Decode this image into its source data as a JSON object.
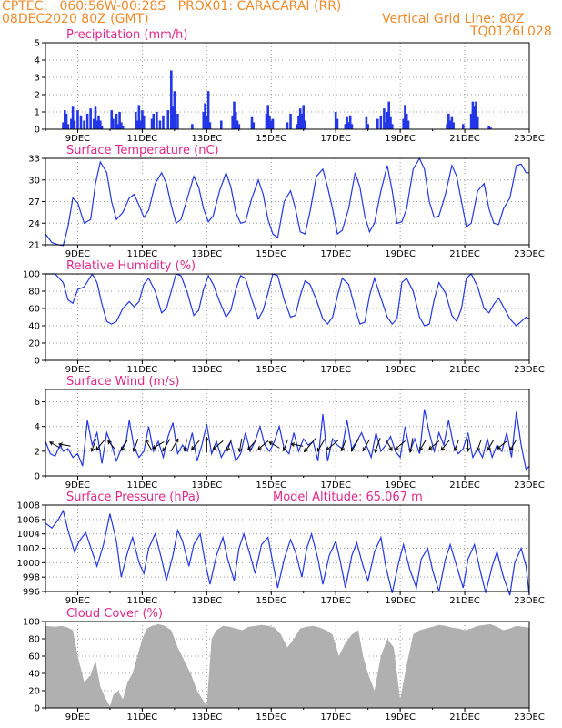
{
  "header": {
    "line1": "CPTEC:   060:56W-00:28S   PROX01: CARACARAI (RR)",
    "line2_left": "08DEC2020 80Z (GMT)",
    "line2_right": "Vertical Grid Line: 80Z",
    "line3_right": "TQ0126L028"
  },
  "colors": {
    "line": "#2336e8",
    "bar": "#2336e8",
    "cloud": "#b0b0b0",
    "title": "#e0288a",
    "header": "#f08a2a",
    "arrow": "#000000"
  },
  "x_labels": [
    "9DEC",
    "11DEC",
    "13DEC",
    "15DEC",
    "17DEC",
    "19DEC",
    "21DEC",
    "23DEC"
  ],
  "chart_data": [
    {
      "type": "bar",
      "title": "Precipitation (mm/h)",
      "ylim": [
        0,
        5
      ],
      "yticks": [
        "0",
        "1",
        "2",
        "3",
        "4",
        "5"
      ],
      "x": [
        8.55,
        8.6,
        8.65,
        8.7,
        8.8,
        8.85,
        8.9,
        9.0,
        9.1,
        9.2,
        9.3,
        9.4,
        9.5,
        9.55,
        9.6,
        9.65,
        9.7,
        9.75,
        10.05,
        10.1,
        10.2,
        10.25,
        10.3,
        10.35,
        10.4,
        10.8,
        10.85,
        10.9,
        10.95,
        11.0,
        11.05,
        11.3,
        11.35,
        11.45,
        11.55,
        11.65,
        11.8,
        11.9,
        11.95,
        12.0,
        12.1,
        12.55,
        12.9,
        12.95,
        13.0,
        13.05,
        13.1,
        13.45,
        13.8,
        13.85,
        13.9,
        13.95,
        14.0,
        14.4,
        14.45,
        14.85,
        14.9,
        14.95,
        15.0,
        15.05,
        15.5,
        15.6,
        15.8,
        15.85,
        15.9,
        15.95,
        16.0,
        16.05,
        17.0,
        17.05,
        17.3,
        17.35,
        17.4,
        17.45,
        17.5,
        17.95,
        18.0,
        18.3,
        18.4,
        18.5,
        18.55,
        18.6,
        18.65,
        18.7,
        18.75,
        19.1,
        19.15,
        19.2,
        19.25,
        20.45,
        20.5,
        20.55,
        20.6,
        20.65,
        20.95,
        21.2,
        21.25,
        21.3,
        21.35,
        21.4,
        21.75,
        21.8
      ],
      "values": [
        0.4,
        1.1,
        0.9,
        0.3,
        0.6,
        1.3,
        0.5,
        1.1,
        0.8,
        0.5,
        0.9,
        1.2,
        0.6,
        1.3,
        0.5,
        0.8,
        0.5,
        0.2,
        1.1,
        0.6,
        0.9,
        0.3,
        1.0,
        0.4,
        0.2,
        1.0,
        0.5,
        1.4,
        0.5,
        1.1,
        0.8,
        0.6,
        0.9,
        1.0,
        0.5,
        0.8,
        1.1,
        3.4,
        1.3,
        2.2,
        0.9,
        0.3,
        1.0,
        1.5,
        0.8,
        2.2,
        0.4,
        0.5,
        0.8,
        1.6,
        1.0,
        0.5,
        0.3,
        0.7,
        0.4,
        0.9,
        1.4,
        0.8,
        0.5,
        0.6,
        0.4,
        0.9,
        0.3,
        0.8,
        1.2,
        0.9,
        1.4,
        0.5,
        1.0,
        0.6,
        0.3,
        0.7,
        0.4,
        0.8,
        0.3,
        0.7,
        0.3,
        0.6,
        0.8,
        1.2,
        0.4,
        1.0,
        1.6,
        0.7,
        0.3,
        0.6,
        1.4,
        0.9,
        0.5,
        0.3,
        0.9,
        0.5,
        0.7,
        0.4,
        0.3,
        0.9,
        1.6,
        1.3,
        1.6,
        0.7,
        0.2,
        0.1
      ]
    },
    {
      "type": "line",
      "title": "Surface Temperature (nC)",
      "ylim": [
        21,
        33
      ],
      "yticks": [
        "21",
        "24",
        "27",
        "30",
        "33"
      ],
      "x": [
        8.0,
        8.2,
        8.4,
        8.55,
        8.7,
        8.85,
        9.0,
        9.2,
        9.4,
        9.55,
        9.7,
        9.9,
        10.05,
        10.2,
        10.4,
        10.6,
        10.75,
        10.9,
        11.05,
        11.2,
        11.4,
        11.6,
        11.75,
        11.9,
        12.05,
        12.2,
        12.4,
        12.6,
        12.75,
        12.9,
        13.05,
        13.2,
        13.4,
        13.6,
        13.75,
        13.9,
        14.05,
        14.2,
        14.4,
        14.6,
        14.75,
        14.9,
        15.05,
        15.2,
        15.4,
        15.6,
        15.75,
        15.9,
        16.05,
        16.2,
        16.4,
        16.6,
        16.75,
        16.9,
        17.05,
        17.2,
        17.4,
        17.6,
        17.75,
        17.9,
        18.05,
        18.2,
        18.4,
        18.6,
        18.75,
        18.9,
        19.05,
        19.2,
        19.4,
        19.6,
        19.75,
        19.9,
        20.05,
        20.2,
        20.4,
        20.6,
        20.75,
        20.9,
        21.05,
        21.2,
        21.4,
        21.6,
        21.75,
        21.9,
        22.05,
        22.2,
        22.4,
        22.6,
        22.75,
        22.9,
        23.0
      ],
      "values": [
        22.5,
        21.3,
        21.0,
        20.9,
        23.5,
        27.5,
        26.8,
        24.0,
        24.5,
        29.5,
        32.5,
        31.0,
        27.0,
        24.5,
        25.5,
        27.5,
        28.0,
        26.5,
        24.8,
        25.8,
        29.5,
        31.0,
        29.5,
        26.5,
        24.0,
        24.5,
        27.5,
        30.5,
        29.0,
        26.0,
        24.2,
        25.0,
        28.5,
        31.0,
        29.0,
        25.5,
        24.0,
        24.2,
        27.5,
        30.0,
        28.0,
        24.5,
        22.5,
        22.0,
        27.0,
        28.5,
        26.0,
        22.8,
        22.5,
        25.5,
        30.5,
        31.5,
        29.0,
        26.0,
        22.5,
        23.0,
        26.0,
        31.0,
        29.0,
        25.0,
        22.8,
        24.0,
        28.5,
        32.0,
        28.5,
        24.0,
        24.2,
        26.0,
        31.5,
        33.0,
        31.5,
        27.0,
        24.8,
        25.0,
        28.0,
        32.0,
        30.5,
        27.0,
        23.5,
        24.0,
        28.5,
        29.5,
        26.0,
        24.0,
        23.8,
        26.0,
        27.5,
        32.0,
        32.2,
        31.0,
        31.0
      ]
    },
    {
      "type": "line",
      "title": "Relative Humidity (%)",
      "ylim": [
        0,
        100
      ],
      "yticks": [
        "0",
        "20",
        "40",
        "60",
        "80",
        "100"
      ],
      "x": [
        8.0,
        8.3,
        8.55,
        8.7,
        8.85,
        9.0,
        9.2,
        9.45,
        9.6,
        9.75,
        9.9,
        10.05,
        10.2,
        10.4,
        10.6,
        10.75,
        10.9,
        11.05,
        11.2,
        11.4,
        11.6,
        11.75,
        11.9,
        12.05,
        12.2,
        12.4,
        12.6,
        12.75,
        12.9,
        13.05,
        13.2,
        13.4,
        13.6,
        13.75,
        13.9,
        14.05,
        14.2,
        14.4,
        14.6,
        14.75,
        14.9,
        15.05,
        15.2,
        15.4,
        15.6,
        15.75,
        15.9,
        16.05,
        16.2,
        16.4,
        16.6,
        16.75,
        16.9,
        17.05,
        17.2,
        17.4,
        17.6,
        17.75,
        17.9,
        18.05,
        18.2,
        18.4,
        18.6,
        18.75,
        18.9,
        19.05,
        19.2,
        19.4,
        19.6,
        19.75,
        19.9,
        20.05,
        20.2,
        20.4,
        20.6,
        20.75,
        20.9,
        21.05,
        21.2,
        21.4,
        21.6,
        21.75,
        21.9,
        22.05,
        22.2,
        22.4,
        22.6,
        22.75,
        22.9,
        23.0
      ],
      "values": [
        100,
        100,
        90,
        70,
        66,
        82,
        85,
        100,
        90,
        65,
        45,
        42,
        45,
        60,
        68,
        62,
        68,
        88,
        95,
        80,
        55,
        60,
        80,
        100,
        98,
        78,
        52,
        58,
        82,
        98,
        88,
        68,
        50,
        58,
        82,
        98,
        95,
        70,
        48,
        58,
        78,
        100,
        98,
        70,
        50,
        52,
        75,
        92,
        88,
        70,
        48,
        42,
        50,
        74,
        95,
        88,
        60,
        42,
        44,
        75,
        95,
        72,
        50,
        42,
        48,
        90,
        95,
        80,
        50,
        40,
        42,
        70,
        90,
        78,
        52,
        45,
        60,
        95,
        100,
        85,
        60,
        55,
        65,
        72,
        62,
        48,
        40,
        45,
        50,
        48
      ]
    },
    {
      "type": "line",
      "title": "Surface Wind (m/s)",
      "ylim": [
        0,
        7
      ],
      "yticks": [
        "0",
        "2",
        "4",
        "6"
      ],
      "x": [
        8.0,
        8.15,
        8.3,
        8.45,
        8.55,
        8.7,
        8.85,
        9.0,
        9.15,
        9.3,
        9.45,
        9.6,
        9.75,
        9.9,
        10.05,
        10.2,
        10.35,
        10.5,
        10.6,
        10.75,
        10.9,
        11.05,
        11.2,
        11.35,
        11.5,
        11.65,
        11.8,
        11.95,
        12.1,
        12.25,
        12.4,
        12.55,
        12.7,
        12.85,
        13.0,
        13.15,
        13.3,
        13.45,
        13.6,
        13.75,
        13.9,
        14.05,
        14.2,
        14.35,
        14.5,
        14.65,
        14.8,
        14.95,
        15.1,
        15.25,
        15.4,
        15.55,
        15.7,
        15.85,
        16.0,
        16.15,
        16.3,
        16.45,
        16.6,
        16.75,
        16.9,
        17.05,
        17.2,
        17.35,
        17.5,
        17.65,
        17.8,
        17.95,
        18.1,
        18.25,
        18.4,
        18.55,
        18.7,
        18.85,
        19.0,
        19.15,
        19.3,
        19.45,
        19.6,
        19.75,
        19.9,
        20.05,
        20.2,
        20.35,
        20.5,
        20.65,
        20.8,
        20.95,
        21.1,
        21.25,
        21.4,
        21.55,
        21.7,
        21.85,
        22.0,
        22.15,
        22.3,
        22.45,
        22.6,
        22.75,
        22.9,
        23.0
      ],
      "values": [
        2.8,
        1.8,
        1.6,
        2.5,
        2.0,
        2.2,
        1.5,
        1.8,
        0.8,
        4.5,
        2.5,
        3.5,
        1.0,
        3.5,
        2.5,
        1.2,
        2.2,
        2.8,
        4.5,
        2.3,
        1.5,
        2.0,
        4.0,
        2.0,
        2.8,
        1.5,
        3.2,
        4.3,
        1.8,
        2.5,
        2.0,
        3.5,
        1.2,
        2.5,
        4.2,
        1.8,
        2.8,
        1.5,
        2.2,
        2.8,
        1.2,
        1.8,
        3.5,
        2.0,
        2.8,
        4.0,
        2.5,
        2.0,
        2.8,
        4.0,
        2.2,
        1.8,
        3.5,
        2.0,
        3.0,
        2.5,
        2.8,
        1.2,
        5.0,
        1.2,
        3.0,
        2.5,
        2.2,
        4.5,
        2.2,
        2.8,
        3.5,
        2.5,
        1.5,
        3.5,
        2.0,
        2.5,
        3.2,
        2.0,
        1.5,
        4.0,
        2.0,
        3.0,
        1.8,
        5.4,
        3.5,
        2.0,
        3.5,
        2.5,
        4.5,
        2.5,
        1.8,
        2.2,
        3.5,
        1.5,
        2.2,
        1.5,
        3.0,
        1.5,
        2.5,
        2.0,
        3.5,
        1.5,
        5.2,
        2.5,
        0.5,
        0.8
      ]
    },
    {
      "type": "line",
      "title": "Surface Pressure (hPa)",
      "annotation": "Model Altitude: 65.067 m",
      "ylim": [
        996,
        1008
      ],
      "yticks": [
        "996",
        "998",
        "1000",
        "1002",
        "1004",
        "1006",
        "1008"
      ],
      "x": [
        8.0,
        8.2,
        8.4,
        8.55,
        8.7,
        8.9,
        9.05,
        9.25,
        9.45,
        9.6,
        9.8,
        10.0,
        10.2,
        10.35,
        10.55,
        10.7,
        10.9,
        11.05,
        11.2,
        11.4,
        11.6,
        11.75,
        11.95,
        12.1,
        12.25,
        12.45,
        12.6,
        12.8,
        12.95,
        13.1,
        13.3,
        13.5,
        13.65,
        13.85,
        14.0,
        14.15,
        14.35,
        14.5,
        14.7,
        14.9,
        15.05,
        15.2,
        15.4,
        15.6,
        15.75,
        15.95,
        16.1,
        16.25,
        16.45,
        16.6,
        16.8,
        17.0,
        17.15,
        17.3,
        17.5,
        17.65,
        17.85,
        18.0,
        18.2,
        18.4,
        18.55,
        18.75,
        18.95,
        19.1,
        19.3,
        19.5,
        19.65,
        19.85,
        20.0,
        20.2,
        20.4,
        20.55,
        20.75,
        20.95,
        21.1,
        21.3,
        21.5,
        21.65,
        21.85,
        22.0,
        22.2,
        22.4,
        22.55,
        22.75,
        22.9,
        23.0
      ],
      "values": [
        1005.5,
        1004.8,
        1006.0,
        1007.2,
        1004.5,
        1001.5,
        1003.0,
        1004.2,
        1001.5,
        999.5,
        1002.5,
        1006.8,
        1003.0,
        998.0,
        1001.5,
        1003.5,
        1000.0,
        998.5,
        1002.0,
        1004.0,
        1000.5,
        997.5,
        1001.0,
        1004.5,
        1003.0,
        999.5,
        1002.5,
        1004.0,
        1000.0,
        997.0,
        1001.0,
        1003.5,
        1000.5,
        997.5,
        1002.0,
        1004.0,
        1001.0,
        998.5,
        1002.5,
        1003.5,
        1000.0,
        996.5,
        1000.5,
        1003.2,
        1001.5,
        998.0,
        1002.0,
        1004.0,
        1000.5,
        997.0,
        1001.0,
        1003.0,
        1000.0,
        996.5,
        1001.0,
        1002.8,
        999.5,
        997.5,
        1001.5,
        1003.5,
        999.5,
        995.8,
        1000.0,
        1002.5,
        999.0,
        996.5,
        1000.5,
        1002.0,
        999.0,
        996.0,
        1000.5,
        1002.5,
        999.5,
        996.5,
        1000.5,
        1002.5,
        998.5,
        995.8,
        999.5,
        1001.5,
        998.0,
        995.5,
        1000.0,
        1002.0,
        999.5,
        995.5
      ]
    },
    {
      "type": "area",
      "title": "Cloud Cover (%)",
      "ylim": [
        0,
        100
      ],
      "yticks": [
        "0",
        "20",
        "40",
        "60",
        "80",
        "100"
      ],
      "x": [
        8.0,
        8.3,
        8.5,
        8.7,
        8.85,
        9.0,
        9.2,
        9.4,
        9.55,
        9.7,
        9.85,
        10.0,
        10.1,
        10.25,
        10.4,
        10.55,
        10.7,
        10.85,
        11.0,
        11.15,
        11.3,
        11.5,
        11.7,
        11.9,
        12.1,
        12.3,
        12.5,
        12.7,
        12.9,
        13.0,
        13.15,
        13.3,
        13.5,
        13.7,
        13.9,
        14.1,
        14.3,
        14.5,
        14.7,
        14.9,
        15.1,
        15.3,
        15.5,
        15.7,
        15.9,
        16.1,
        16.3,
        16.5,
        16.7,
        16.9,
        17.1,
        17.3,
        17.5,
        17.7,
        17.85,
        18.0,
        18.2,
        18.4,
        18.6,
        18.8,
        19.0,
        19.2,
        19.4,
        19.6,
        19.8,
        20.0,
        20.2,
        20.4,
        20.6,
        20.8,
        21.0,
        21.2,
        21.4,
        21.6,
        21.8,
        22.0,
        22.2,
        22.4,
        22.6,
        22.8,
        23.0
      ],
      "values": [
        95,
        94,
        95,
        93,
        90,
        60,
        30,
        38,
        55,
        25,
        12,
        2,
        15,
        20,
        10,
        30,
        40,
        60,
        80,
        92,
        95,
        97,
        95,
        90,
        70,
        55,
        40,
        20,
        8,
        2,
        80,
        90,
        95,
        94,
        92,
        90,
        94,
        95,
        96,
        95,
        93,
        85,
        70,
        80,
        92,
        94,
        95,
        93,
        90,
        85,
        60,
        75,
        85,
        90,
        60,
        40,
        20,
        60,
        80,
        70,
        10,
        50,
        85,
        90,
        92,
        94,
        96,
        95,
        93,
        92,
        90,
        92,
        95,
        96,
        97,
        94,
        90,
        92,
        95,
        94,
        93
      ]
    }
  ],
  "wind_arrows": {
    "x": [
      8.3,
      8.6,
      9.5,
      9.7,
      10.05,
      10.45,
      10.8,
      11.2,
      11.5,
      11.75,
      12.0,
      12.35,
      12.65,
      13.0,
      13.35,
      13.7,
      14.05,
      14.4,
      14.75,
      15.1,
      15.45,
      15.8,
      16.2,
      16.55,
      16.9,
      17.25,
      17.6,
      17.95,
      18.3,
      18.65,
      19.0,
      19.35,
      19.7,
      20.05,
      20.4,
      20.75,
      21.1,
      21.45,
      21.8,
      22.15,
      22.5
    ],
    "direction_deg": [
      300,
      280,
      200,
      220,
      320,
      210,
      200,
      330,
      240,
      210,
      30,
      190,
      220,
      0,
      230,
      200,
      190,
      220,
      230,
      300,
      200,
      280,
      220,
      210,
      230,
      200,
      210,
      210,
      200,
      150,
      230,
      190,
      210,
      230,
      220,
      200,
      180,
      200,
      210,
      230,
      210
    ],
    "speed": [
      3.0,
      2.8,
      3.5,
      3.2,
      2.5,
      3.0,
      3.5,
      3.0,
      3.5,
      3.8,
      4.0,
      3.0,
      3.0,
      4.5,
      3.5,
      3.0,
      3.5,
      3.0,
      3.5,
      3.0,
      3.0,
      3.0,
      5.5,
      4.0,
      4.5,
      3.0,
      4.0,
      3.5,
      4.5,
      3.0,
      3.5,
      4.0,
      3.0,
      3.5,
      3.5,
      3.0,
      3.0,
      3.0,
      3.0,
      3.0,
      3.0
    ]
  }
}
